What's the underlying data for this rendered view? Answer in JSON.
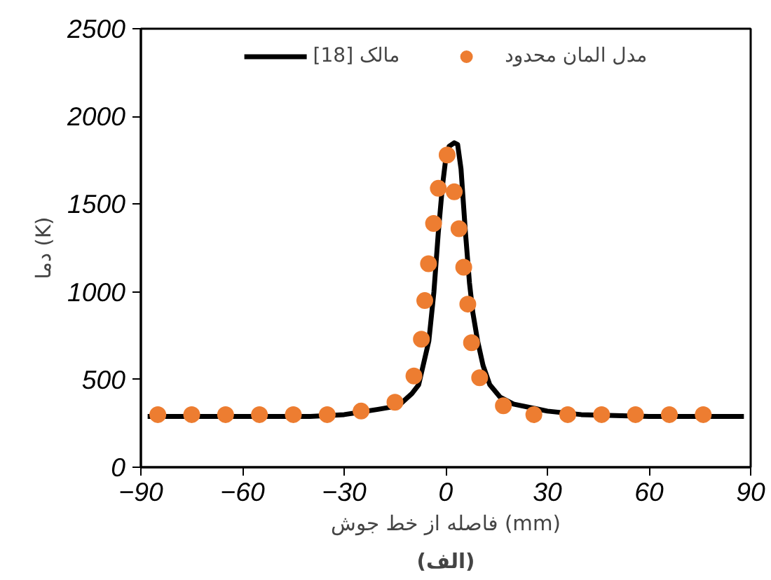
{
  "chart_data": {
    "type": "line",
    "xlabel": "فاصله از خط جوش (mm)",
    "ylabel": "دما (K)",
    "annotations": [
      "(الف)"
    ],
    "xlim": [
      -90,
      90
    ],
    "xticks": [
      -90,
      -60,
      -30,
      0,
      30,
      60,
      90
    ],
    "ylim": [
      0,
      2500
    ],
    "yticks": [
      0,
      500,
      1000,
      1500,
      2000,
      2500
    ],
    "grid": false,
    "legend": "top",
    "series": [
      {
        "name": "مالک [18]",
        "color": "#000000",
        "line_style": "solid",
        "marker": "none",
        "x": [
          -88,
          -60,
          -40,
          -30,
          -20,
          -14,
          -10,
          -8,
          -5,
          -3.5,
          -2.2,
          -1,
          0,
          1,
          2.5,
          3.5,
          4.5,
          5.8,
          7,
          8,
          9.4,
          11,
          13,
          16,
          20,
          30,
          40,
          60,
          88
        ],
        "values": [
          290,
          290,
          290,
          300,
          330,
          350,
          420,
          470,
          720,
          1000,
          1340,
          1600,
          1760,
          1830,
          1850,
          1840,
          1700,
          1340,
          1050,
          880,
          720,
          580,
          470,
          400,
          360,
          320,
          300,
          290,
          290
        ]
      },
      {
        "name": "مدل المان محدود",
        "type": "scatter",
        "color": "#ed7d31",
        "marker": "circle",
        "x": [
          -85,
          -75,
          -65,
          -55,
          -45,
          -35,
          -25,
          -15,
          -9.4,
          -7.2,
          -6.2,
          -5.1,
          -3.6,
          -2.2,
          0.4,
          2.5,
          3.9,
          5.3,
          6.5,
          7.6,
          10,
          17,
          26,
          36,
          46,
          56,
          66,
          76
        ],
        "values": [
          300,
          300,
          300,
          300,
          300,
          300,
          320,
          370,
          520,
          730,
          950,
          1160,
          1390,
          1590,
          1780,
          1570,
          1360,
          1140,
          930,
          710,
          510,
          350,
          300,
          300,
          300,
          300,
          300,
          300
        ]
      }
    ]
  }
}
